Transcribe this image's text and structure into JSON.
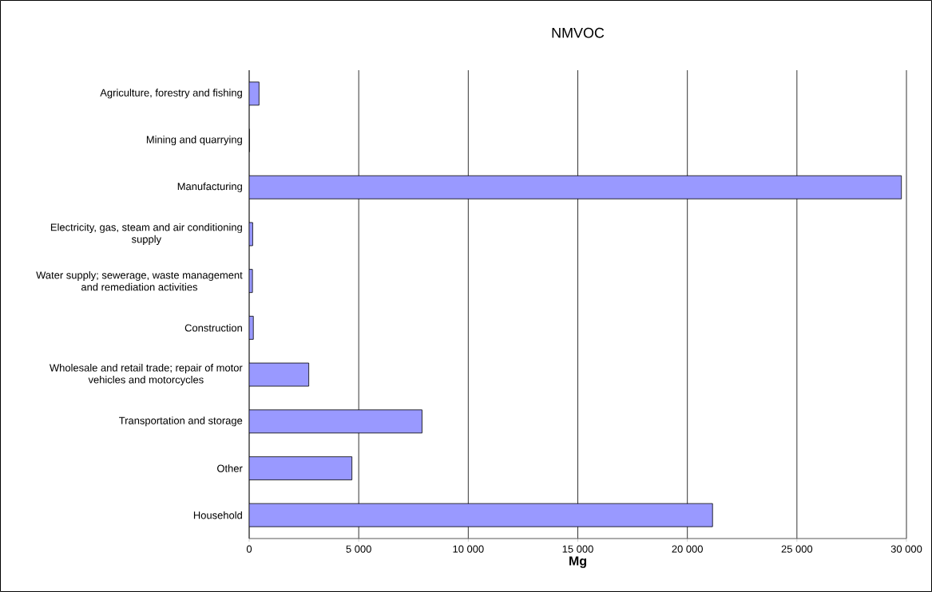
{
  "chart_data": {
    "type": "bar",
    "orientation": "horizontal",
    "title": "NMVOC",
    "xlabel": "Mg",
    "categories": [
      "Agriculture, forestry and fishing",
      "Mining and quarrying",
      "Manufacturing",
      "Electricity, gas, steam and air conditioning supply",
      "Water supply; sewerage, waste management and remediation activities",
      "Construction",
      "Wholesale and retail trade; repair of motor vehicles and motorcycles",
      "Transportation and storage",
      "Other",
      "Household"
    ],
    "values": [
      450,
      0,
      29770,
      160,
      150,
      190,
      2720,
      7890,
      4690,
      21150
    ],
    "color": "#9999ff",
    "xlim": [
      0,
      30000
    ],
    "xticks": [
      0,
      {
        "value": 5000,
        "label": "5 000"
      },
      {
        "value": 10000,
        "label": "10 000"
      },
      {
        "value": 15000,
        "label": "15 000"
      },
      {
        "value": 20000,
        "label": "20 000"
      },
      {
        "value": 25000,
        "label": "25 000"
      },
      {
        "value": 30000,
        "label": "30 000"
      }
    ],
    "grid": "x"
  }
}
